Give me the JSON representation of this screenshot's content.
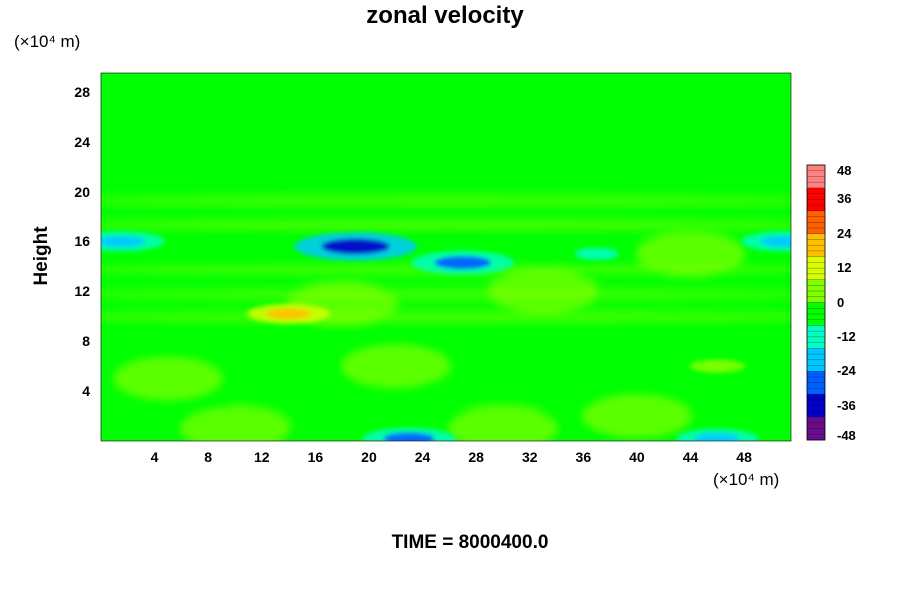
{
  "chart_data": {
    "type": "heatmap",
    "title": "zonal velocity",
    "ylabel": "Height",
    "xlabel": "",
    "x_unit": "(×10⁴ m)",
    "y_unit": "(×10⁴ m)",
    "xlim": [
      0,
      51.5
    ],
    "ylim": [
      0,
      29.5
    ],
    "x_ticks": [
      "4",
      "8",
      "12",
      "16",
      "20",
      "24",
      "28",
      "32",
      "36",
      "40",
      "44",
      "48"
    ],
    "y_ticks": [
      "4",
      "8",
      "12",
      "16",
      "20",
      "24",
      "28"
    ],
    "colorbar": {
      "range": [
        -48,
        48
      ],
      "ticks": [
        "48",
        "36",
        "24",
        "12",
        "0",
        "-12",
        "-24",
        "-36",
        "-48"
      ],
      "colors": [
        "#6a0d8a",
        "#0000c8",
        "#0060ff",
        "#00c8ff",
        "#00ffc0",
        "#00ff00",
        "#80ff00",
        "#d8ff00",
        "#ffc000",
        "#ff6000",
        "#ff0000",
        "#ff8080"
      ]
    },
    "annotation": "TIME = 8000400.0",
    "layers": [
      {
        "y_range": [
          21,
          29.5
        ],
        "value": -2
      },
      {
        "y_range": [
          18,
          21
        ],
        "value": -5
      },
      {
        "y_range": [
          9.5,
          18
        ],
        "value": -3
      },
      {
        "y_range": [
          0,
          9.5
        ],
        "value": -1
      }
    ],
    "features": [
      {
        "x": 19,
        "y": 15.6,
        "value": -40
      },
      {
        "x": 27,
        "y": 14.3,
        "value": -30
      },
      {
        "x": 1.5,
        "y": 16,
        "value": -22
      },
      {
        "x": 51,
        "y": 16,
        "value": -22
      },
      {
        "x": 37,
        "y": 15,
        "value": -15
      },
      {
        "x": 46,
        "y": 6,
        "value": 6
      },
      {
        "x": 14,
        "y": 10.2,
        "value": 20
      },
      {
        "x": 23,
        "y": 0.2,
        "value": -25
      },
      {
        "x": 46,
        "y": 0.2,
        "value": -20
      }
    ]
  }
}
